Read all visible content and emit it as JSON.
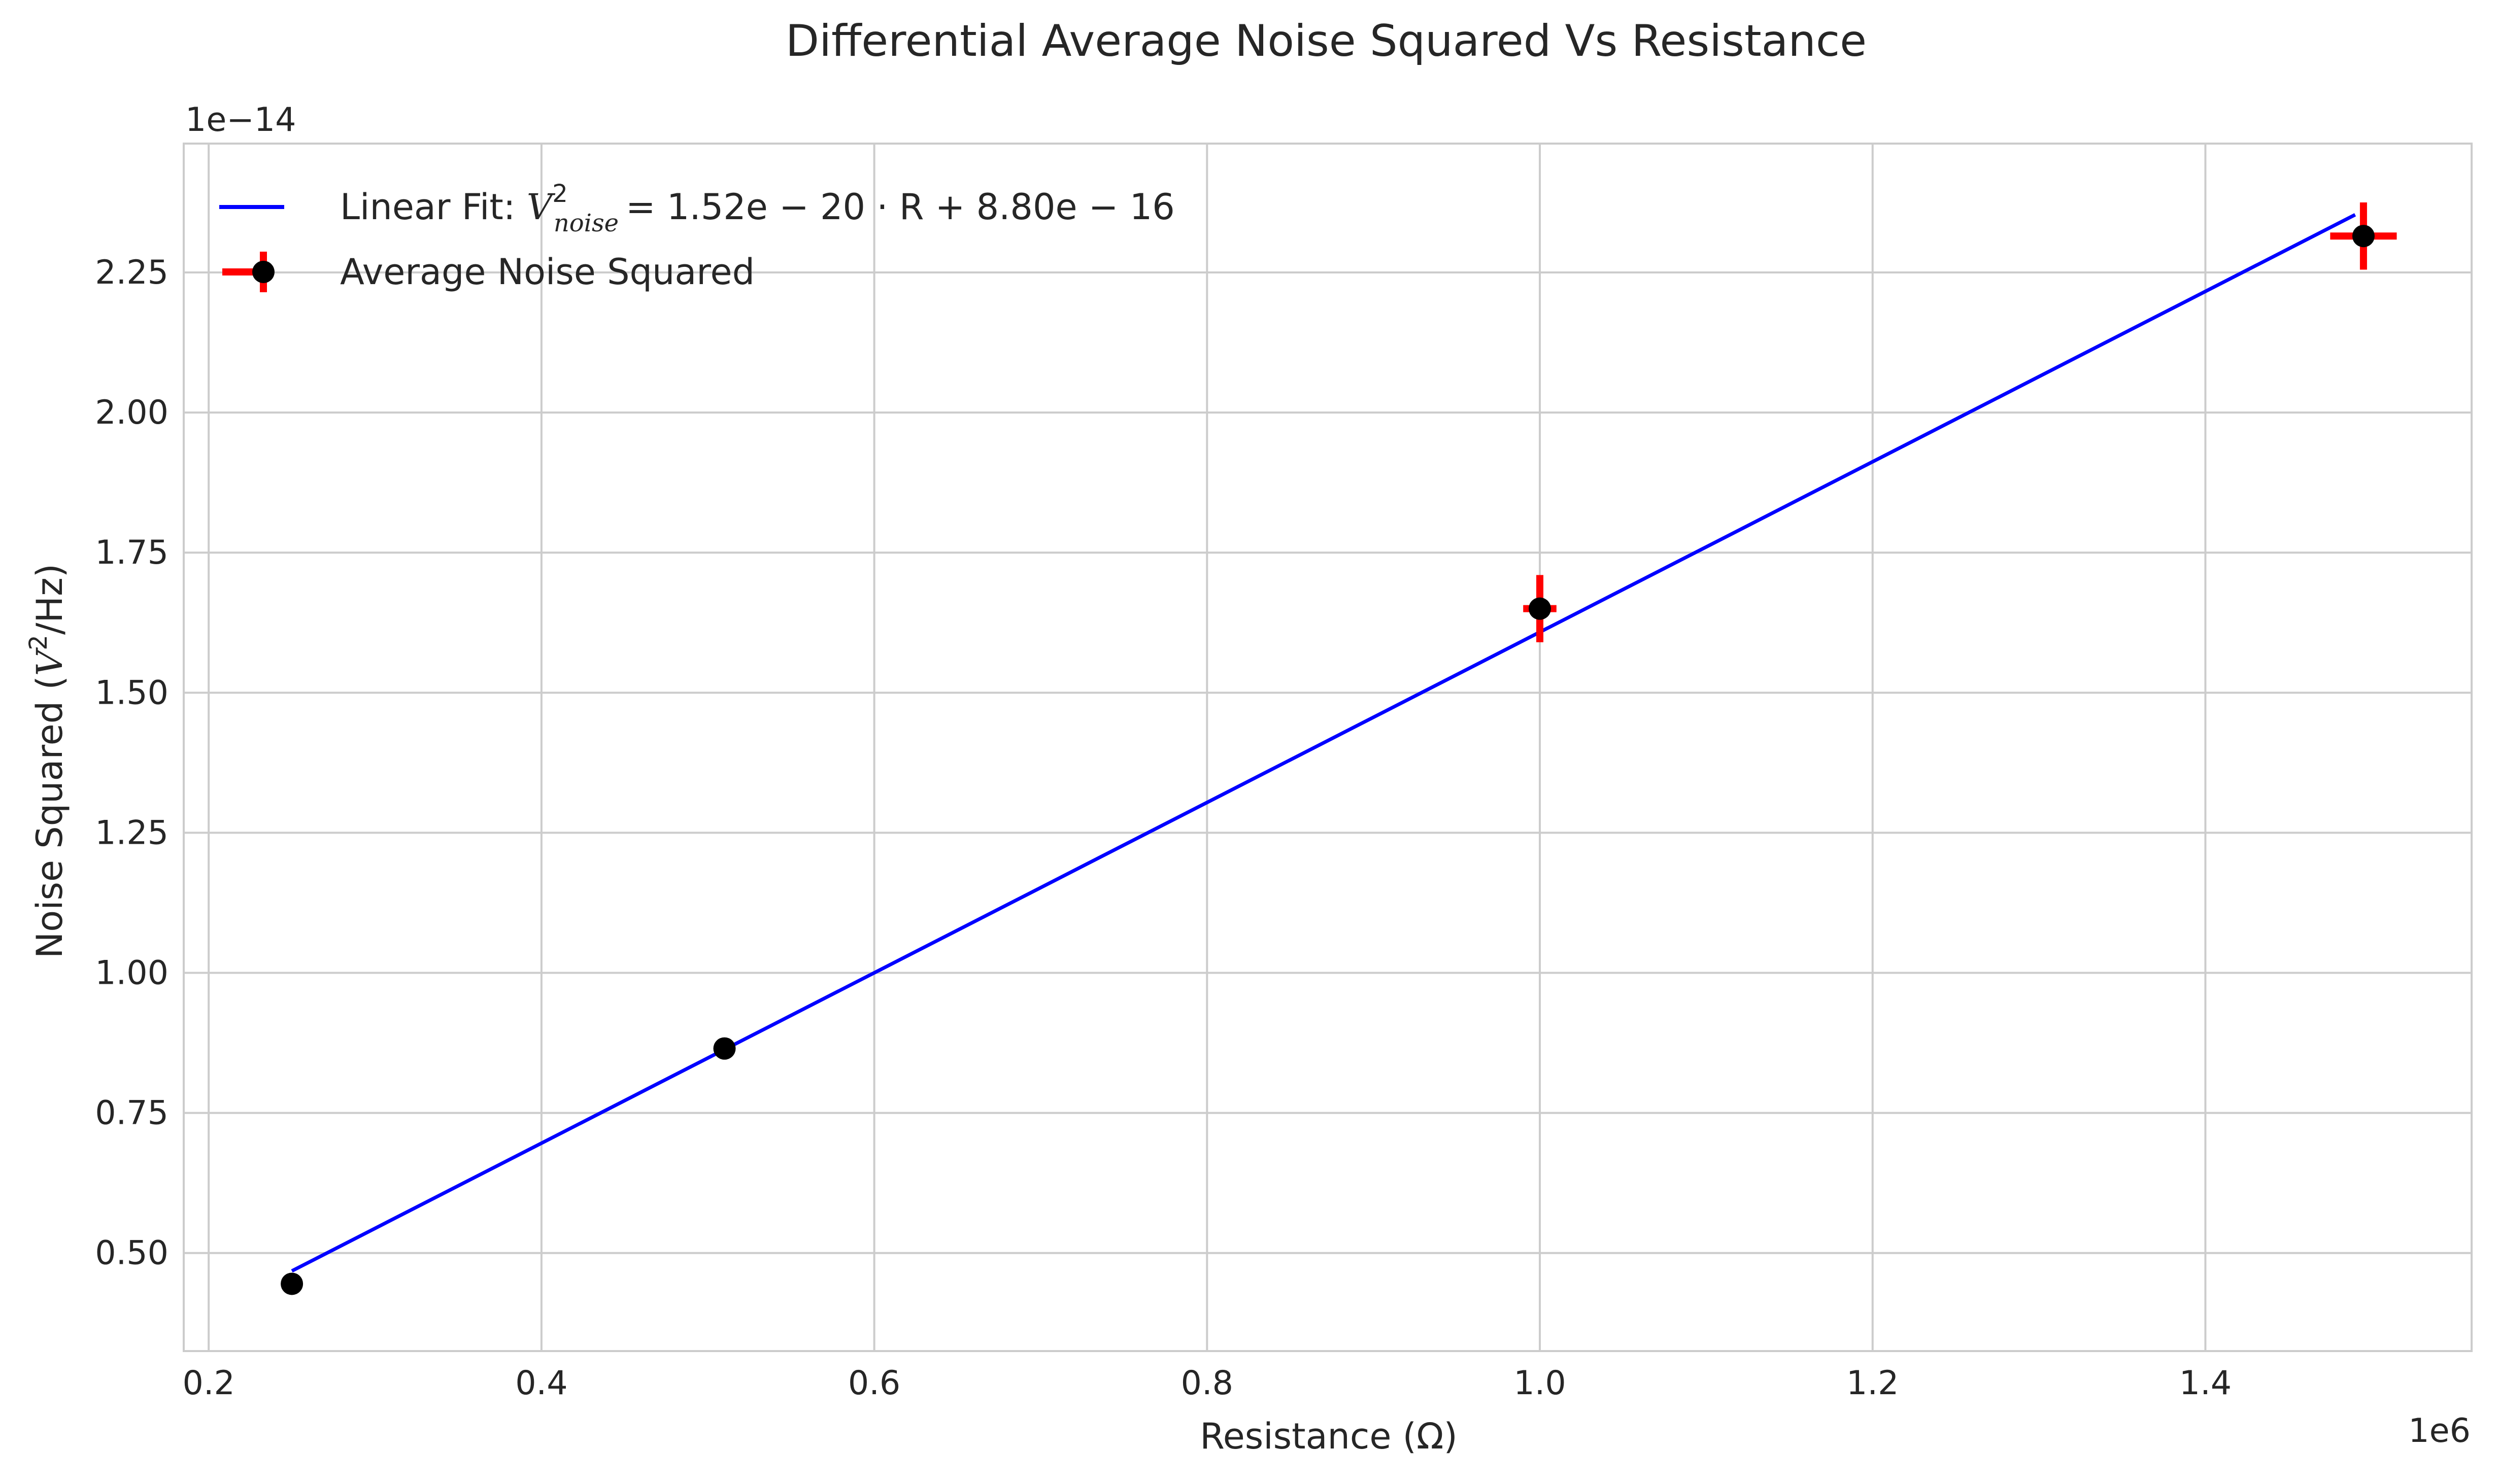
{
  "chart_data": {
    "type": "scatter",
    "title": "Differential Average Noise Squared Vs Resistance",
    "xlabel": "Resistance (Ω)",
    "ylabel_prefix": "Noise Squared (",
    "ylabel_var": "V",
    "ylabel_sup": "2",
    "ylabel_suffix": "/Hz)",
    "x_offset_text": "1e6",
    "y_offset_text": "1e−14",
    "x_scale": 1000000,
    "y_scale": 1e-14,
    "xlim": [
      0.185,
      1.56
    ],
    "ylim": [
      0.325,
      2.48
    ],
    "xticks": [
      0.2,
      0.4,
      0.6,
      0.8,
      1.0,
      1.2,
      1.4
    ],
    "xtick_labels": [
      "0.2",
      "0.4",
      "0.6",
      "0.8",
      "1.0",
      "1.2",
      "1.4"
    ],
    "yticks": [
      0.5,
      0.75,
      1.0,
      1.25,
      1.5,
      1.75,
      2.0,
      2.25
    ],
    "ytick_labels": [
      "0.50",
      "0.75",
      "1.00",
      "1.25",
      "1.50",
      "1.75",
      "2.00",
      "2.25"
    ],
    "grid": true,
    "legend_position": "upper-left",
    "series": [
      {
        "name": "Linear Fit",
        "kind": "line",
        "color": "#0000ff",
        "x": [
          0.25,
          1.49
        ],
        "y": [
          0.468,
          2.353
        ],
        "legend_label_text": "Linear Fit: ",
        "legend_math": {
          "var": "V",
          "sup": "2",
          "sub": "noise",
          "rest": "= 1.52e − 20 · R + 8.80e − 16"
        }
      },
      {
        "name": "Average Noise Squared",
        "kind": "errorbar",
        "marker_color": "#000000",
        "error_color": "#ff0000",
        "x": [
          0.25,
          0.51,
          1.0,
          1.495
        ],
        "y": [
          0.445,
          0.865,
          1.65,
          2.315
        ],
        "x_err": [
          0.0,
          0.0,
          0.01,
          0.02
        ],
        "y_err": [
          0.0,
          0.0,
          0.06,
          0.06
        ],
        "legend_label_text": "Average Noise Squared"
      }
    ]
  },
  "colors": {
    "grid": "#cccccc",
    "spine": "#cccccc",
    "text": "#262626",
    "background": "#ffffff"
  }
}
